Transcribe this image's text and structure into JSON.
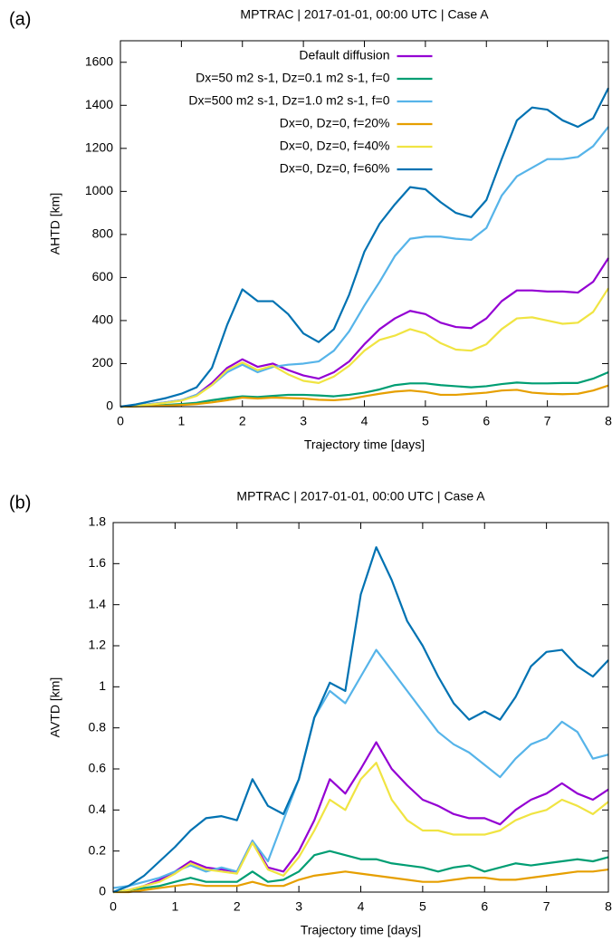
{
  "chart_data": [
    {
      "type": "line",
      "label": "(a)",
      "title": "MPTRAC | 2017-01-01, 00:00 UTC | Case A",
      "xlabel": "Trajectory time [days]",
      "ylabel": "AHTD [km]",
      "xlim": [
        0,
        8
      ],
      "xticks": [
        0,
        1,
        2,
        3,
        4,
        5,
        6,
        7,
        8
      ],
      "ylim": [
        0,
        1700
      ],
      "yticks": [
        0,
        200,
        400,
        600,
        800,
        1000,
        1200,
        1400,
        1600
      ],
      "grid": false,
      "legend": "top",
      "x": [
        0,
        0.25,
        0.5,
        0.75,
        1,
        1.25,
        1.5,
        1.75,
        2,
        2.25,
        2.5,
        2.75,
        3,
        3.25,
        3.5,
        3.75,
        4,
        4.25,
        4.5,
        4.75,
        5,
        5.25,
        5.5,
        5.75,
        6,
        6.25,
        6.5,
        6.75,
        7,
        7.25,
        7.5,
        7.75,
        8
      ],
      "series": [
        {
          "name": "Default diffusion",
          "color": "#9400d3",
          "values": [
            0,
            5,
            12,
            20,
            30,
            55,
            110,
            180,
            220,
            185,
            200,
            170,
            145,
            130,
            160,
            210,
            290,
            360,
            410,
            445,
            430,
            390,
            370,
            365,
            410,
            490,
            540,
            540,
            535,
            535,
            530,
            580,
            690
          ]
        },
        {
          "name": "Dx=50 m2 s-1, Dz=0.1 m2 s-1, f=0",
          "color": "#009e73",
          "values": [
            0,
            2,
            5,
            8,
            12,
            18,
            30,
            40,
            48,
            45,
            50,
            55,
            55,
            52,
            48,
            55,
            65,
            80,
            100,
            108,
            108,
            100,
            95,
            90,
            95,
            105,
            112,
            108,
            108,
            110,
            110,
            130,
            160
          ]
        },
        {
          "name": "Dx=500 m2 s-1, Dz=1.0 m2 s-1, f=0",
          "color": "#56b4e9",
          "values": [
            0,
            5,
            12,
            20,
            30,
            55,
            100,
            160,
            195,
            160,
            185,
            195,
            200,
            210,
            260,
            350,
            470,
            580,
            700,
            780,
            790,
            790,
            780,
            775,
            830,
            980,
            1070,
            1110,
            1150,
            1150,
            1160,
            1210,
            1300
          ]
        },
        {
          "name": "Dx=0, Dz=0, f=20%",
          "color": "#e69f00",
          "values": [
            0,
            1,
            3,
            5,
            8,
            12,
            20,
            30,
            42,
            38,
            42,
            40,
            38,
            32,
            30,
            35,
            48,
            60,
            70,
            75,
            68,
            55,
            55,
            60,
            65,
            75,
            78,
            65,
            60,
            58,
            60,
            75,
            98
          ]
        },
        {
          "name": "Dx=0, Dz=0, f=40%",
          "color": "#f0e442",
          "values": [
            0,
            5,
            10,
            18,
            28,
            50,
            100,
            170,
            205,
            170,
            190,
            150,
            120,
            110,
            140,
            190,
            260,
            310,
            330,
            360,
            340,
            295,
            265,
            260,
            290,
            360,
            410,
            415,
            400,
            385,
            390,
            440,
            550
          ]
        },
        {
          "name": "Dx=0, Dz=0, f=60%",
          "color": "#0072b2",
          "values": [
            0,
            10,
            25,
            40,
            60,
            90,
            180,
            380,
            545,
            490,
            490,
            430,
            340,
            300,
            360,
            520,
            720,
            850,
            940,
            1020,
            1010,
            950,
            900,
            880,
            960,
            1150,
            1330,
            1390,
            1380,
            1330,
            1300,
            1340,
            1480
          ]
        }
      ]
    },
    {
      "type": "line",
      "label": "(b)",
      "title": "MPTRAC | 2017-01-01, 00:00 UTC | Case A",
      "xlabel": "Trajectory time [days]",
      "ylabel": "AVTD [km]",
      "xlim": [
        0,
        8
      ],
      "xticks": [
        0,
        1,
        2,
        3,
        4,
        5,
        6,
        7,
        8
      ],
      "ylim": [
        0,
        1.8
      ],
      "yticks": [
        0,
        0.2,
        0.4,
        0.6,
        0.8,
        1,
        1.2,
        1.4,
        1.6,
        1.8
      ],
      "grid": false,
      "x": [
        0,
        0.25,
        0.5,
        0.75,
        1,
        1.25,
        1.5,
        1.75,
        2,
        2.25,
        2.5,
        2.75,
        3,
        3.25,
        3.5,
        3.75,
        4,
        4.25,
        4.5,
        4.75,
        5,
        5.25,
        5.5,
        5.75,
        6,
        6.25,
        6.5,
        6.75,
        7,
        7.25,
        7.5,
        7.75,
        8
      ],
      "series": [
        {
          "color": "#9400d3",
          "values": [
            0,
            0.01,
            0.03,
            0.06,
            0.1,
            0.15,
            0.12,
            0.11,
            0.1,
            0.25,
            0.12,
            0.1,
            0.2,
            0.35,
            0.55,
            0.48,
            0.6,
            0.73,
            0.6,
            0.52,
            0.45,
            0.42,
            0.38,
            0.36,
            0.36,
            0.33,
            0.4,
            0.45,
            0.48,
            0.53,
            0.48,
            0.45,
            0.5
          ]
        },
        {
          "color": "#009e73",
          "values": [
            0,
            0.01,
            0.02,
            0.03,
            0.05,
            0.07,
            0.05,
            0.05,
            0.05,
            0.1,
            0.05,
            0.06,
            0.1,
            0.18,
            0.2,
            0.18,
            0.16,
            0.16,
            0.14,
            0.13,
            0.12,
            0.1,
            0.12,
            0.13,
            0.1,
            0.12,
            0.14,
            0.13,
            0.14,
            0.15,
            0.16,
            0.15,
            0.17
          ]
        },
        {
          "color": "#56b4e9",
          "values": [
            0.02,
            0.03,
            0.05,
            0.07,
            0.1,
            0.13,
            0.1,
            0.12,
            0.1,
            0.25,
            0.15,
            0.35,
            0.55,
            0.85,
            0.98,
            0.92,
            1.05,
            1.18,
            1.08,
            0.98,
            0.88,
            0.78,
            0.72,
            0.68,
            0.62,
            0.56,
            0.65,
            0.72,
            0.75,
            0.83,
            0.78,
            0.65,
            0.67
          ]
        },
        {
          "color": "#e69f00",
          "values": [
            0,
            0,
            0.01,
            0.02,
            0.03,
            0.04,
            0.03,
            0.03,
            0.03,
            0.05,
            0.03,
            0.03,
            0.06,
            0.08,
            0.09,
            0.1,
            0.09,
            0.08,
            0.07,
            0.06,
            0.05,
            0.05,
            0.06,
            0.07,
            0.07,
            0.06,
            0.06,
            0.07,
            0.08,
            0.09,
            0.1,
            0.1,
            0.11
          ]
        },
        {
          "color": "#f0e442",
          "values": [
            0,
            0.01,
            0.03,
            0.05,
            0.09,
            0.14,
            0.11,
            0.1,
            0.09,
            0.24,
            0.11,
            0.08,
            0.17,
            0.3,
            0.45,
            0.4,
            0.55,
            0.63,
            0.45,
            0.35,
            0.3,
            0.3,
            0.28,
            0.28,
            0.28,
            0.3,
            0.35,
            0.38,
            0.4,
            0.45,
            0.42,
            0.38,
            0.44
          ]
        },
        {
          "color": "#0072b2",
          "values": [
            0,
            0.03,
            0.08,
            0.15,
            0.22,
            0.3,
            0.36,
            0.37,
            0.35,
            0.55,
            0.42,
            0.38,
            0.55,
            0.85,
            1.02,
            0.98,
            1.45,
            1.68,
            1.52,
            1.32,
            1.2,
            1.05,
            0.92,
            0.84,
            0.88,
            0.84,
            0.95,
            1.1,
            1.17,
            1.18,
            1.1,
            1.05,
            1.13
          ]
        }
      ]
    }
  ]
}
